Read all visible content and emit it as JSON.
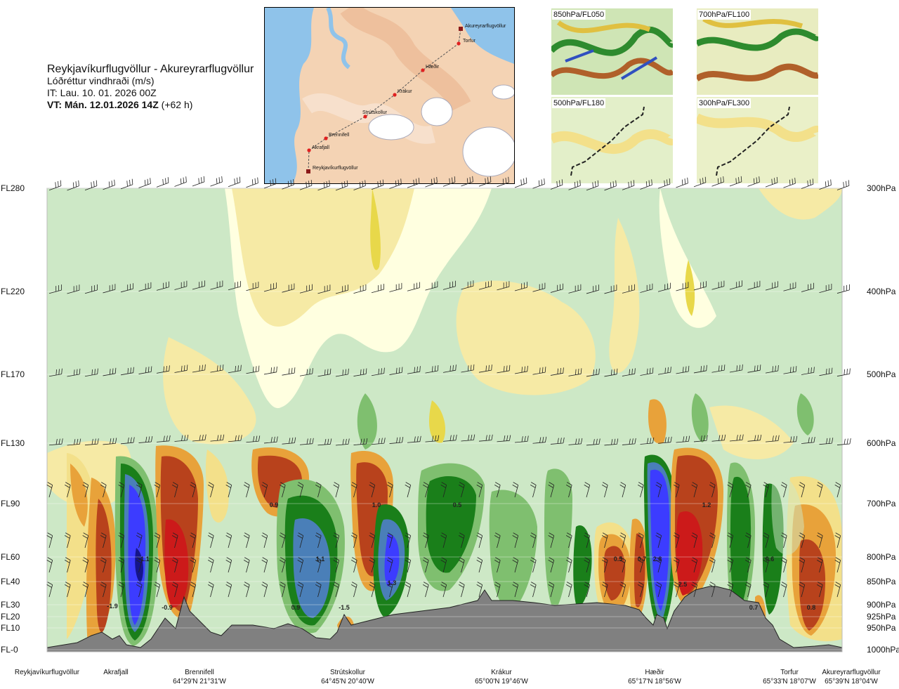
{
  "header": {
    "route": "Reykjavíkurflugvöllur - Akureyrarflugvöllur",
    "parameter": "Lóðréttur vindhraði (m/s)",
    "issue_time": "IT: Lau. 10. 01. 2026 00Z",
    "valid_prefix": "VT: Mán. 12.01.2026 14Z",
    "valid_suffix": "(+62 h)"
  },
  "route_map": {
    "waypoints": [
      "Akureyrarflugvöllur",
      "Torfur",
      "Hæðir",
      "Krákur",
      "Strútskollur",
      "Brennifell",
      "Akrafjall",
      "Reykjavíkurflugvöllur"
    ]
  },
  "thumbnails": [
    {
      "label": "850hPa/FL050"
    },
    {
      "label": "700hPa/FL100"
    },
    {
      "label": "500hPa/FL180"
    },
    {
      "label": "300hPa/FL300"
    }
  ],
  "chart_data": {
    "type": "heatmap",
    "title": "Lóðréttur vindhraði (m/s)",
    "x_axis": "distance along route (Reykjavíkurflugvöllur to Akureyrarflugvöllur)",
    "y_levels_left": [
      "FL280",
      "FL220",
      "FL170",
      "FL130",
      "FL90",
      "FL60",
      "FL40",
      "FL30",
      "FL20",
      "FL10",
      "FL-0"
    ],
    "y_levels_right": [
      "300hPa",
      "400hPa",
      "500hPa",
      "600hPa",
      "700hPa",
      "800hPa",
      "850hPa",
      "900hPa",
      "925hPa",
      "950hPa",
      "1000hPa"
    ],
    "waypoints": [
      {
        "name": "Reykjavíkurflugvöllur",
        "coord": ""
      },
      {
        "name": "Akrafjall",
        "coord": ""
      },
      {
        "name": "Brennifell",
        "coord": "64°29'N 21°31'W"
      },
      {
        "name": "Strútskollur",
        "coord": "64°45'N 20°40'W"
      },
      {
        "name": "Krákur",
        "coord": "65°00'N 19°46'W"
      },
      {
        "name": "Hæðir",
        "coord": "65°17'N 18°56'W"
      },
      {
        "name": "Torfur",
        "coord": "65°33'N 18°07'W"
      },
      {
        "name": "Akureyrarflugvöllur",
        "coord": "65°39'N 18°04'W"
      }
    ],
    "annotations": [
      "-1.9",
      "-1.1",
      "-0.9",
      "0.9",
      "1.1",
      "0.9",
      "-1.5",
      "1.0",
      "1.3",
      "0.5",
      "0.5",
      "0.7",
      "2.8",
      "1.2",
      "2.5",
      "0.6",
      "0.7",
      "0.8"
    ],
    "colors": {
      "strong_up": "#3c3cff",
      "up": "#4a7fb8",
      "moderate_up": "#1a7f1a",
      "weak_up": "#7fbf6f",
      "very_weak_up": "#cde8c6",
      "neutral": "#ffffe0",
      "weak_down": "#f3e08a",
      "moderate_down": "#e8a23a",
      "down": "#b8421c",
      "strong_down": "#cc1a1a",
      "terrain": "#808080"
    }
  }
}
